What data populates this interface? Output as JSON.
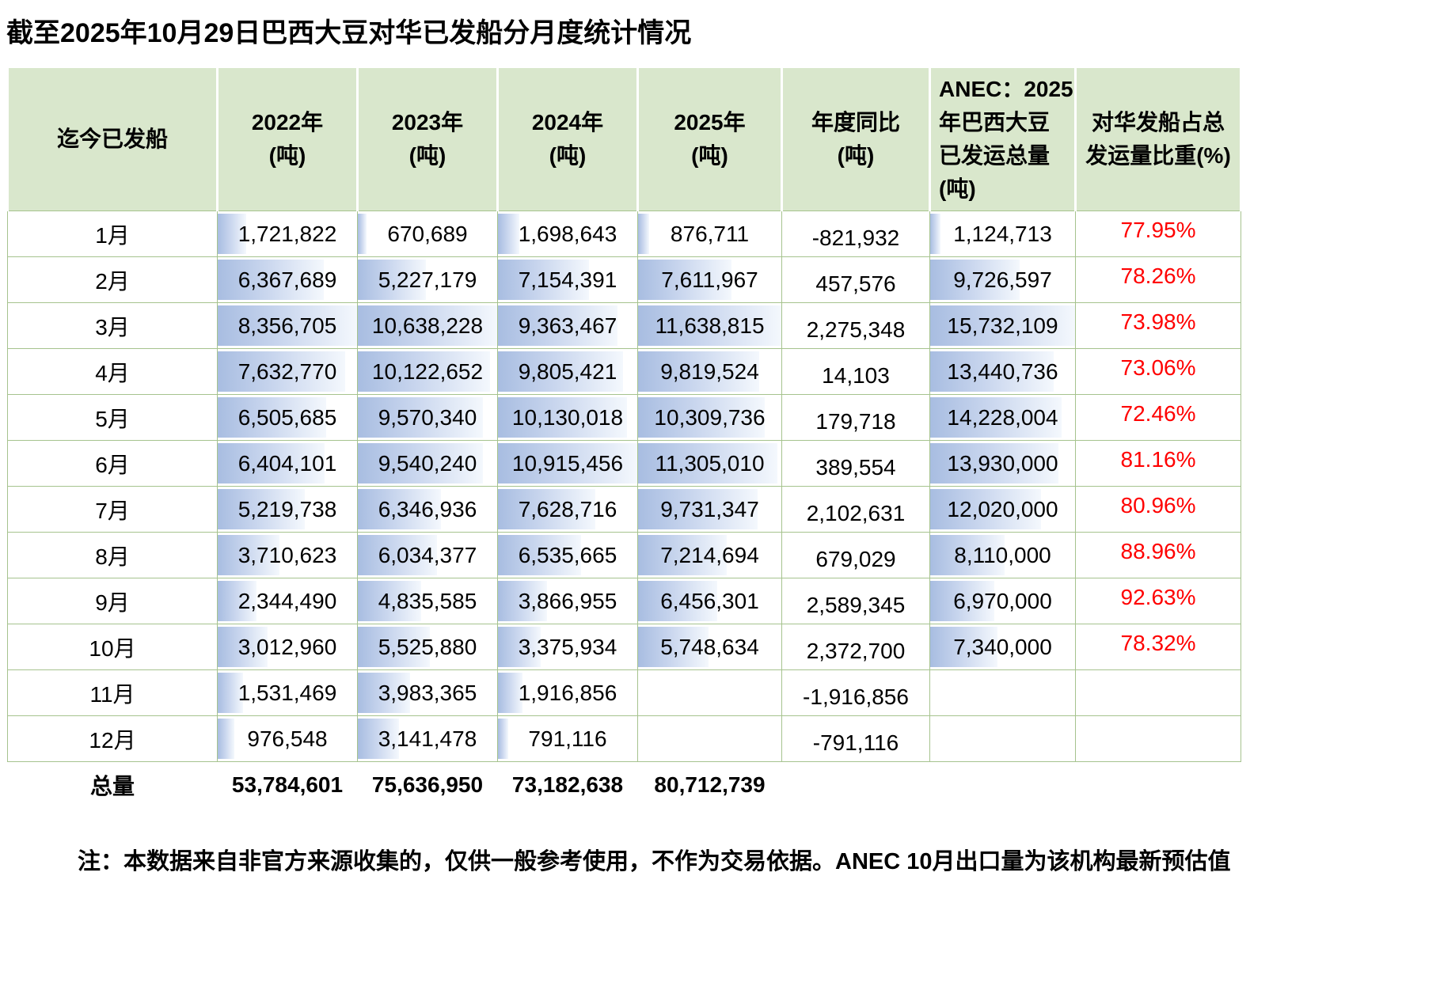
{
  "title": "截至2025年10月29日巴西大豆对华已发船分月度统计情况",
  "note": "注：本数据来自非官方来源收集的，仅供一般参考使用，不作为交易依据。ANEC 10月出口量为该机构最新预估值",
  "colors": {
    "header_bg": "#d9e7cc",
    "grid_green": "#a6c38e",
    "bar_start": "#a8bde1",
    "bar_end": "#f4f8fd",
    "pct_red": "#ff0000"
  },
  "table": {
    "headers": {
      "month": "迄今已发船",
      "y2022": "2022年\n(吨)",
      "y2023": "2023年\n(吨)",
      "y2024": "2024年\n(吨)",
      "y2025": "2025年\n(吨)",
      "yoy": "年度同比\n(吨)",
      "anec": "ANEC：2025\n年巴西大豆\n已发运总量\n(吨)",
      "pct": "对华发船占总\n发运量比重(%)"
    },
    "rows": [
      {
        "month": "1月",
        "y2022": "1,721,822",
        "y2023": "670,689",
        "y2024": "1,698,643",
        "y2025": "876,711",
        "yoy": "-821,932",
        "anec": "1,124,713",
        "pct": "77.95%"
      },
      {
        "month": "2月",
        "y2022": "6,367,689",
        "y2023": "5,227,179",
        "y2024": "7,154,391",
        "y2025": "7,611,967",
        "yoy": "457,576",
        "anec": "9,726,597",
        "pct": "78.26%"
      },
      {
        "month": "3月",
        "y2022": "8,356,705",
        "y2023": "10,638,228",
        "y2024": "9,363,467",
        "y2025": "11,638,815",
        "yoy": "2,275,348",
        "anec": "15,732,109",
        "pct": "73.98%"
      },
      {
        "month": "4月",
        "y2022": "7,632,770",
        "y2023": "10,122,652",
        "y2024": "9,805,421",
        "y2025": "9,819,524",
        "yoy": "14,103",
        "anec": "13,440,736",
        "pct": "73.06%"
      },
      {
        "month": "5月",
        "y2022": "6,505,685",
        "y2023": "9,570,340",
        "y2024": "10,130,018",
        "y2025": "10,309,736",
        "yoy": "179,718",
        "anec": "14,228,004",
        "pct": "72.46%"
      },
      {
        "month": "6月",
        "y2022": "6,404,101",
        "y2023": "9,540,240",
        "y2024": "10,915,456",
        "y2025": "11,305,010",
        "yoy": "389,554",
        "anec": "13,930,000",
        "pct": "81.16%"
      },
      {
        "month": "7月",
        "y2022": "5,219,738",
        "y2023": "6,346,936",
        "y2024": "7,628,716",
        "y2025": "9,731,347",
        "yoy": "2,102,631",
        "anec": "12,020,000",
        "pct": "80.96%"
      },
      {
        "month": "8月",
        "y2022": "3,710,623",
        "y2023": "6,034,377",
        "y2024": "6,535,665",
        "y2025": "7,214,694",
        "yoy": "679,029",
        "anec": "8,110,000",
        "pct": "88.96%"
      },
      {
        "month": "9月",
        "y2022": "2,344,490",
        "y2023": "4,835,585",
        "y2024": "3,866,955",
        "y2025": "6,456,301",
        "yoy": "2,589,345",
        "anec": "6,970,000",
        "pct": "92.63%"
      },
      {
        "month": "10月",
        "y2022": "3,012,960",
        "y2023": "5,525,880",
        "y2024": "3,375,934",
        "y2025": "5,748,634",
        "yoy": "2,372,700",
        "anec": "7,340,000",
        "pct": "78.32%"
      },
      {
        "month": "11月",
        "y2022": "1,531,469",
        "y2023": "3,983,365",
        "y2024": "1,916,856",
        "y2025": "",
        "yoy": "-1,916,856",
        "anec": "",
        "pct": ""
      },
      {
        "month": "12月",
        "y2022": "976,548",
        "y2023": "3,141,478",
        "y2024": "791,116",
        "y2025": "",
        "yoy": "-791,116",
        "anec": "",
        "pct": ""
      }
    ],
    "total": {
      "month": "总量",
      "y2022": "53,784,601",
      "y2023": "75,636,950",
      "y2024": "73,182,638",
      "y2025": "80,712,739",
      "yoy": "",
      "anec": "",
      "pct": ""
    }
  },
  "chart_data": {
    "type": "table",
    "title": "截至2025年10月29日巴西大豆对华已发船分月度统计情况",
    "categories": [
      "1月",
      "2月",
      "3月",
      "4月",
      "5月",
      "6月",
      "7月",
      "8月",
      "9月",
      "10月",
      "11月",
      "12月"
    ],
    "series": [
      {
        "name": "2022年(吨)",
        "values": [
          1721822,
          6367689,
          8356705,
          7632770,
          6505685,
          6404101,
          5219738,
          3710623,
          2344490,
          3012960,
          1531469,
          976548
        ]
      },
      {
        "name": "2023年(吨)",
        "values": [
          670689,
          5227179,
          10638228,
          10122652,
          9570340,
          9540240,
          6346936,
          6034377,
          4835585,
          5525880,
          3983365,
          3141478
        ]
      },
      {
        "name": "2024年(吨)",
        "values": [
          1698643,
          7154391,
          9363467,
          9805421,
          10130018,
          10915456,
          7628716,
          6535665,
          3866955,
          3375934,
          1916856,
          791116
        ]
      },
      {
        "name": "2025年(吨)",
        "values": [
          876711,
          7611967,
          11638815,
          9819524,
          10309736,
          11305010,
          9731347,
          7214694,
          6456301,
          5748634,
          null,
          null
        ]
      },
      {
        "name": "年度同比(吨)",
        "values": [
          -821932,
          457576,
          2275348,
          14103,
          179718,
          389554,
          2102631,
          679029,
          2589345,
          2372700,
          -1916856,
          -791116
        ]
      },
      {
        "name": "ANEC：2025年巴西大豆已发运总量(吨)",
        "values": [
          1124713,
          9726597,
          15732109,
          13440736,
          14228004,
          13930000,
          12020000,
          8110000,
          6970000,
          7340000,
          null,
          null
        ]
      },
      {
        "name": "对华发船占总发运量比重(%)",
        "values": [
          77.95,
          78.26,
          73.98,
          73.06,
          72.46,
          81.16,
          80.96,
          88.96,
          92.63,
          78.32,
          null,
          null
        ]
      }
    ],
    "totals": {
      "2022": 53784601,
      "2023": 75636950,
      "2024": 73182638,
      "2025": 80712739
    },
    "layout_hints": {
      "data_bars_columns": [
        "2022年(吨)",
        "2023年(吨)",
        "2024年(吨)",
        "2025年(吨)",
        "ANEC：2025年巴西大豆已发运总量(吨)"
      ],
      "bar_scale": "value/column_max"
    }
  }
}
